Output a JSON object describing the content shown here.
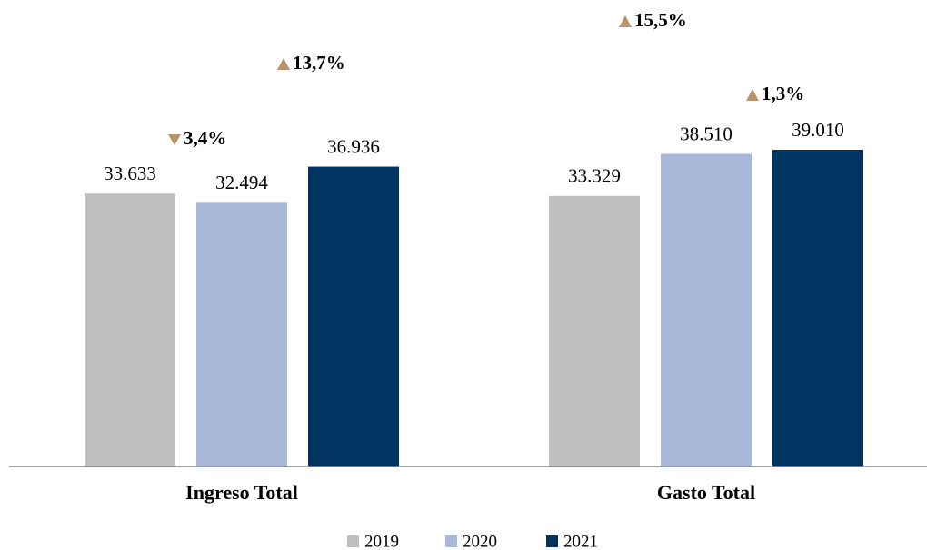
{
  "chart_data": {
    "type": "bar",
    "categories": [
      "Ingreso Total",
      "Gasto Total"
    ],
    "series": [
      {
        "name": "2019",
        "color": "#bfbfbf",
        "values": [
          33633,
          33329
        ],
        "value_labels": [
          "33.633",
          "33.329"
        ]
      },
      {
        "name": "2020",
        "color": "#a9b7d9",
        "values": [
          32494,
          38510
        ],
        "value_labels": [
          "32.494",
          "38.510"
        ]
      },
      {
        "name": "2021",
        "color": "#003463",
        "values": [
          36936,
          39010
        ],
        "value_labels": [
          "36.936",
          "39.010"
        ]
      }
    ],
    "ylim": [
      0,
      56000
    ],
    "annotations": [
      {
        "text": "3,4%",
        "direction": "down"
      },
      {
        "text": "13,7%",
        "direction": "up"
      },
      {
        "text": "15,5%",
        "direction": "up"
      },
      {
        "text": "1,3%",
        "direction": "up"
      }
    ],
    "annotation_color": "#b8946a",
    "legend": "bottom"
  }
}
